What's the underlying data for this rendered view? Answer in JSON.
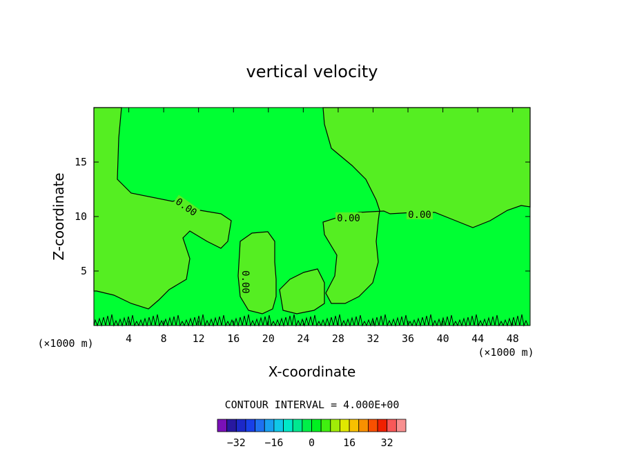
{
  "chart_data": {
    "type": "heatmap",
    "subtype": "filled-contour",
    "title": "vertical velocity",
    "xlabel": "X-coordinate",
    "ylabel": "Z-coordinate",
    "x_unit": "(×1000 m)",
    "y_unit": "(×1000 m)",
    "xlim": [
      0,
      50
    ],
    "ylim": [
      0,
      20
    ],
    "x_ticks": [
      4,
      8,
      12,
      16,
      20,
      24,
      28,
      32,
      36,
      40,
      44,
      48
    ],
    "y_ticks": [
      5,
      10,
      15
    ],
    "contour_interval_text": "CONTOUR INTERVAL = 4.000E+00",
    "contour_labels": [
      "0.00",
      "0.00",
      "0.00",
      "0.00"
    ],
    "region_values": [
      "0 to 4",
      "-4 to 0"
    ],
    "colorbar": {
      "tick_labels": [
        "-32",
        "-16",
        "0",
        "16",
        "32"
      ],
      "colors": [
        "#7a10b8",
        "#2818a0",
        "#1c28c8",
        "#1840e8",
        "#1e70f0",
        "#18a0f0",
        "#10c8e8",
        "#00e8c8",
        "#00e890",
        "#00f048",
        "#00f020",
        "#40f010",
        "#a0ec08",
        "#e0e800",
        "#f8c000",
        "#f89000",
        "#f85000",
        "#f02000",
        "#f85858",
        "#f89090"
      ]
    },
    "colors": {
      "positive_fill": "#55ee22",
      "negative_fill": "#00ff33",
      "contour_line": "#000000"
    }
  }
}
